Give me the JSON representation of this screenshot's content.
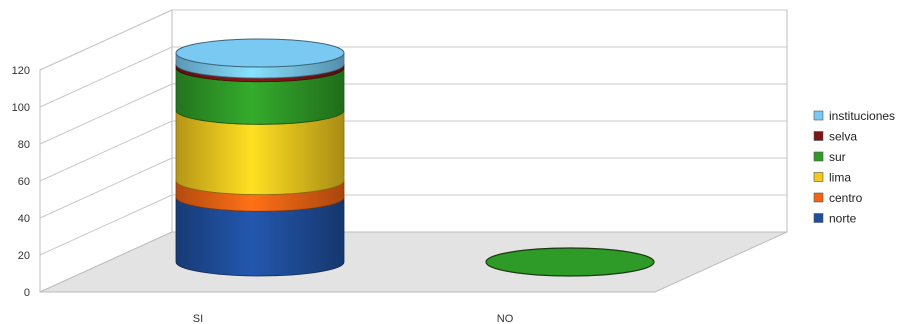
{
  "chart_data": {
    "type": "bar",
    "style": "3d-stacked-cylinder",
    "categories": [
      "SI",
      "NO"
    ],
    "series": [
      {
        "name": "norte",
        "color": "#1f4e9c",
        "values": [
          35,
          0
        ]
      },
      {
        "name": "centro",
        "color": "#f06414",
        "values": [
          9,
          0
        ]
      },
      {
        "name": "lima",
        "color": "#f2c81e",
        "values": [
          38,
          0
        ]
      },
      {
        "name": "sur",
        "color": "#2e9a27",
        "values": [
          23,
          1
        ]
      },
      {
        "name": "selva",
        "color": "#7a1616",
        "values": [
          2,
          0
        ]
      },
      {
        "name": "instituciones",
        "color": "#79c9f2",
        "values": [
          6,
          0
        ]
      }
    ],
    "ylim": [
      0,
      120
    ],
    "yticks": [
      "0",
      "20",
      "40",
      "60",
      "80",
      "100",
      "120"
    ],
    "grid": true,
    "legend_position": "right",
    "legend_order": [
      "instituciones",
      "selva",
      "sur",
      "lima",
      "centro",
      "norte"
    ]
  }
}
